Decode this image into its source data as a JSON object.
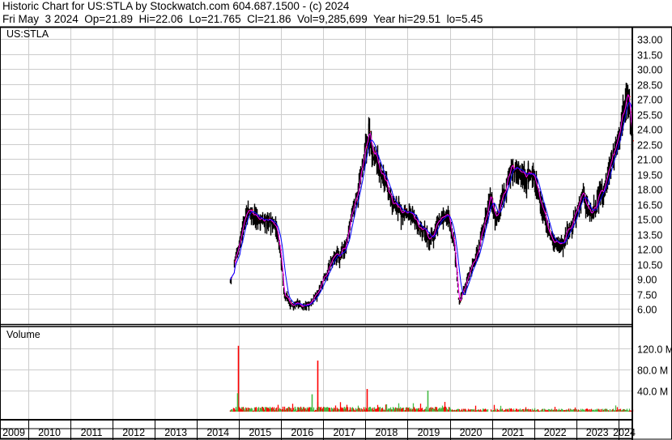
{
  "header": {
    "title": "Historic Chart for US:STLA by Stockwatch.com 604.687.1500 - (c) 2024",
    "quote": "Fri May  3 2024  Op=21.89  Hi=22.06  Lo=21.765  Cl=21.86  Vol=9,285,699  Year hi=29.51  lo=5.45"
  },
  "chart_data": [
    {
      "type": "line",
      "title": "US:STLA",
      "y_ticks": [
        "33.00",
        "31.50",
        "30.00",
        "28.50",
        "27.00",
        "25.50",
        "24.00",
        "22.50",
        "21.00",
        "19.50",
        "18.00",
        "16.50",
        "15.00",
        "13.50",
        "12.00",
        "10.50",
        "9.00",
        "7.50",
        "6.00"
      ],
      "ylim": [
        4.5,
        34.5
      ],
      "x_ticks": [
        "2009",
        "2010",
        "2011",
        "2012",
        "2013",
        "2014",
        "2015",
        "2016",
        "2017",
        "2018",
        "2019",
        "2020",
        "2021",
        "2022",
        "2023",
        "2024"
      ],
      "grid": true,
      "series": [
        {
          "kind": "price-bars",
          "color": "#000000",
          "tick_color": "#ff0000",
          "points": [
            [
              2014.79,
              8.9
            ],
            [
              2014.9,
              11
            ],
            [
              2015.19,
              16.2
            ],
            [
              2015.48,
              15
            ],
            [
              2015.87,
              14.5
            ],
            [
              2015.98,
              12
            ],
            [
              2016.06,
              7.5
            ],
            [
              2016.25,
              6.5
            ],
            [
              2016.63,
              6.3
            ],
            [
              2016.92,
              8
            ],
            [
              2017.21,
              11
            ],
            [
              2017.5,
              12
            ],
            [
              2017.79,
              17.5
            ],
            [
              2018.08,
              23.5
            ],
            [
              2018.27,
              21
            ],
            [
              2018.65,
              16.5
            ],
            [
              2019.13,
              15
            ],
            [
              2019.52,
              13
            ],
            [
              2019.9,
              16
            ],
            [
              2020.1,
              13
            ],
            [
              2020.21,
              6.5
            ],
            [
              2020.67,
              12
            ],
            [
              2020.96,
              17.5
            ],
            [
              2021.1,
              15
            ],
            [
              2021.44,
              20
            ],
            [
              2022.0,
              19.5
            ],
            [
              2022.4,
              13
            ],
            [
              2022.69,
              12.5
            ],
            [
              2023.17,
              17.5
            ],
            [
              2023.37,
              15.5
            ],
            [
              2023.75,
              19.5
            ],
            [
              2023.94,
              22.5
            ],
            [
              2024.19,
              28.5
            ],
            [
              2024.25,
              26.5
            ],
            [
              2024.34,
              21.9
            ]
          ]
        },
        {
          "kind": "moving-average-short",
          "color": "#ff00ff"
        },
        {
          "kind": "moving-average-long",
          "color": "#0000ff"
        }
      ]
    },
    {
      "type": "bar",
      "title": "Volume",
      "y_ticks": [
        "120.0 M",
        "80.0 M",
        "40.0 M"
      ],
      "ylim": [
        0,
        150
      ],
      "up_color": "#44bb44",
      "down_color": "#ff0000",
      "spikes_millions": [
        [
          2014.98,
          125,
          "down"
        ],
        [
          2014.96,
          35,
          "up"
        ],
        [
          2016.86,
          97,
          "down"
        ],
        [
          2018.03,
          43,
          "down"
        ],
        [
          2019.47,
          40,
          "up"
        ],
        [
          2016.72,
          33,
          "up"
        ]
      ],
      "typical_millions": 5
    }
  ]
}
